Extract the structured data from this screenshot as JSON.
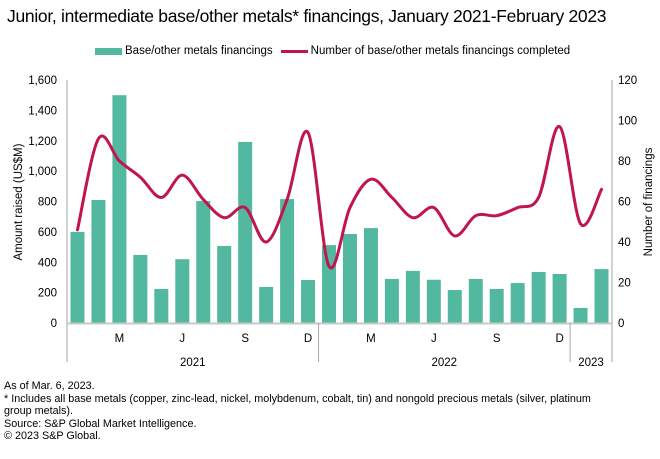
{
  "chart_data": {
    "type": "bar+line",
    "title": "Junior, intermediate base/other metals* financings, January 2021-February 2023",
    "legend": {
      "placement": "top-center",
      "entries": [
        "Base/other metals financings",
        "Number of base/other metals financings completed"
      ]
    },
    "months": [
      "Jan 2021",
      "Feb 2021",
      "Mar 2021",
      "Apr 2021",
      "May 2021",
      "Jun 2021",
      "Jul 2021",
      "Aug 2021",
      "Sep 2021",
      "Oct 2021",
      "Nov 2021",
      "Dec 2021",
      "Jan 2022",
      "Feb 2022",
      "Mar 2022",
      "Apr 2022",
      "May 2022",
      "Jun 2022",
      "Jul 2022",
      "Aug 2022",
      "Sep 2022",
      "Oct 2022",
      "Nov 2022",
      "Dec 2022",
      "Jan 2023",
      "Feb 2023"
    ],
    "series": [
      {
        "name": "Base/other metals financings",
        "type": "bar",
        "axis": "left",
        "color": "#52b9a0",
        "values": [
          600,
          810,
          1500,
          448,
          224,
          420,
          803,
          507,
          1192,
          237,
          816,
          283,
          513,
          586,
          625,
          290,
          343,
          285,
          217,
          290,
          224,
          263,
          336,
          323,
          99,
          355
        ]
      },
      {
        "name": "Number of base/other metals financings completed",
        "type": "line",
        "axis": "right",
        "color": "#c0154d",
        "values": [
          46,
          91,
          80,
          72,
          62,
          73,
          61,
          52,
          57,
          40,
          61,
          94,
          28,
          57,
          71,
          62,
          52,
          57,
          43,
          53,
          53,
          57,
          62,
          97,
          49,
          66
        ]
      }
    ],
    "ylabel": "Amount raised (US$M)",
    "ylim": [
      0,
      1600
    ],
    "yticks": [
      "0",
      "200",
      "400",
      "600",
      "800",
      "1,000",
      "1,200",
      "1,400",
      "1,600"
    ],
    "y2label": "Number of financings",
    "y2lim": [
      0,
      120
    ],
    "y2ticks": [
      "0",
      "20",
      "40",
      "60",
      "80",
      "100",
      "120"
    ],
    "xtick_labels": [
      {
        "month_index": 2,
        "label": "M"
      },
      {
        "month_index": 5,
        "label": "J"
      },
      {
        "month_index": 8,
        "label": "S"
      },
      {
        "month_index": 11,
        "label": "D"
      },
      {
        "month_index": 14,
        "label": "M"
      },
      {
        "month_index": 17,
        "label": "J"
      },
      {
        "month_index": 20,
        "label": "S"
      },
      {
        "month_index": 23,
        "label": "D"
      }
    ],
    "year_groups": [
      {
        "label": "2021",
        "start": 0,
        "end": 11
      },
      {
        "label": "2022",
        "start": 12,
        "end": 23
      },
      {
        "label": "2023",
        "start": 24,
        "end": 25
      }
    ],
    "grid": false
  },
  "footer": {
    "as_of": "As of Mar. 6, 2023.",
    "note_line1": "* Includes all base metals (copper, zinc-lead, nickel, molybdenum, cobalt, tin) and nongold precious metals (silver, platinum",
    "note_line2": "group metals).",
    "source": "Source: S&P Global Market Intelligence.",
    "copyright": "© 2023 S&P Global."
  }
}
